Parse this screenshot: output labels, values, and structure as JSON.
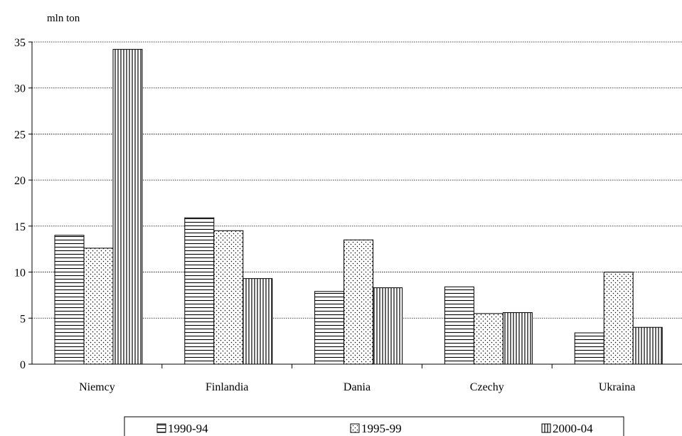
{
  "chart_data": {
    "type": "bar",
    "unit_label": "mln ton",
    "categories": [
      "Niemcy",
      "Finlandia",
      "Dania",
      "Czechy",
      "Ukraina"
    ],
    "series": [
      {
        "name": "1990-94",
        "values": [
          14.0,
          15.9,
          7.9,
          8.4,
          3.4
        ],
        "pattern": "horizontal-lines"
      },
      {
        "name": "1995-99",
        "values": [
          12.6,
          14.5,
          13.5,
          5.5,
          10.0
        ],
        "pattern": "dots"
      },
      {
        "name": "2000-04",
        "values": [
          34.2,
          9.3,
          8.3,
          5.6,
          4.0
        ],
        "pattern": "vertical-lines"
      }
    ],
    "ylim": [
      0,
      35
    ],
    "yticks": [
      "0",
      "5",
      "10",
      "15",
      "20",
      "25",
      "30",
      "35"
    ],
    "ytick_values": [
      0,
      5,
      10,
      15,
      20,
      25,
      30,
      35
    ],
    "grid": "horizontal dotted",
    "legend_position": "bottom"
  }
}
